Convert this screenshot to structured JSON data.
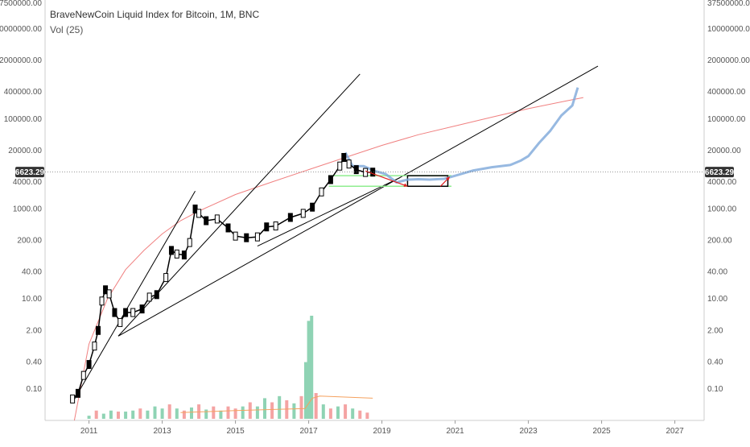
{
  "header": {
    "title": "BraveNewCoin Liquid Index for Bitcoin, 1M, BNC",
    "volume_label": "Vol (25)"
  },
  "current_price_label": "6623.29",
  "colors": {
    "candle": "#000000",
    "projection": "#7da7d9",
    "curve": "#f08080",
    "trendline": "#000000",
    "support": "#90ee90",
    "vol_up": "#8fd3b4",
    "vol_down": "#f4a3a3",
    "vol_ma": "#f5a15e",
    "arrow": "#e02020",
    "price_box": "#333333"
  },
  "chart_data": {
    "type": "line",
    "title": "BraveNewCoin Liquid Index for Bitcoin, 1M, BNC",
    "y_scale": "log",
    "ylim": [
      0.02,
      37500000
    ],
    "xlim": [
      2009.8,
      2027.8
    ],
    "y_ticks": [
      {
        "label": "0.10",
        "value": 0.1
      },
      {
        "label": "0.40",
        "value": 0.4
      },
      {
        "label": "2.00",
        "value": 2
      },
      {
        "label": "10.00",
        "value": 10
      },
      {
        "label": "40.00",
        "value": 40
      },
      {
        "label": "200.00",
        "value": 200
      },
      {
        "label": "1000.00",
        "value": 1000
      },
      {
        "label": "4000.00",
        "value": 4000
      },
      {
        "label": "20000.00",
        "value": 20000
      },
      {
        "label": "100000.00",
        "value": 100000
      },
      {
        "label": "400000.00",
        "value": 400000
      },
      {
        "label": "2000000.00",
        "value": 2000000
      },
      {
        "label": "10000000.00",
        "value": 10000000
      },
      {
        "label": "37500000.00",
        "value": 37500000
      }
    ],
    "x_ticks": [
      {
        "label": "2011",
        "value": 2011
      },
      {
        "label": "2013",
        "value": 2013
      },
      {
        "label": "2015",
        "value": 2015
      },
      {
        "label": "2017",
        "value": 2017
      },
      {
        "label": "2019",
        "value": 2019
      },
      {
        "label": "2021",
        "value": 2021
      },
      {
        "label": "2023",
        "value": 2023
      },
      {
        "label": "2025",
        "value": 2025
      },
      {
        "label": "2027",
        "value": 2027
      }
    ],
    "current_price": 6623.29,
    "price_series": {
      "name": "",
      "points": [
        [
          2010.55,
          0.06
        ],
        [
          2010.7,
          0.08
        ],
        [
          2010.85,
          0.2
        ],
        [
          2011.0,
          0.35
        ],
        [
          2011.15,
          0.9
        ],
        [
          2011.25,
          2.0
        ],
        [
          2011.35,
          9.0
        ],
        [
          2011.45,
          16.0
        ],
        [
          2011.55,
          13.0
        ],
        [
          2011.7,
          5.0
        ],
        [
          2011.85,
          3.0
        ],
        [
          2012.0,
          5.0
        ],
        [
          2012.2,
          5.0
        ],
        [
          2012.45,
          6.0
        ],
        [
          2012.65,
          11.0
        ],
        [
          2012.85,
          12.5
        ],
        [
          2013.1,
          30.0
        ],
        [
          2013.25,
          120.0
        ],
        [
          2013.4,
          100.0
        ],
        [
          2013.6,
          95.0
        ],
        [
          2013.75,
          180.0
        ],
        [
          2013.9,
          1000.0
        ],
        [
          2014.0,
          800.0
        ],
        [
          2014.2,
          550.0
        ],
        [
          2014.5,
          600.0
        ],
        [
          2014.8,
          380.0
        ],
        [
          2015.0,
          250.0
        ],
        [
          2015.3,
          230.0
        ],
        [
          2015.6,
          240.0
        ],
        [
          2015.85,
          400.0
        ],
        [
          2016.1,
          420.0
        ],
        [
          2016.5,
          650.0
        ],
        [
          2016.85,
          800.0
        ],
        [
          2017.1,
          1100.0
        ],
        [
          2017.35,
          2400.0
        ],
        [
          2017.6,
          4500.0
        ],
        [
          2017.85,
          9000.0
        ],
        [
          2017.96,
          14000.0
        ],
        [
          2018.1,
          10000.0
        ],
        [
          2018.3,
          7500.0
        ],
        [
          2018.55,
          6500.0
        ],
        [
          2018.75,
          6600.0
        ]
      ]
    },
    "projection_series": {
      "name": "",
      "points": [
        [
          2018.0,
          18000
        ],
        [
          2018.2,
          9000
        ],
        [
          2018.5,
          9000
        ],
        [
          2018.8,
          7000
        ],
        [
          2019.1,
          6000
        ],
        [
          2019.4,
          3900
        ],
        [
          2019.7,
          4500
        ],
        [
          2020.0,
          4600
        ],
        [
          2020.3,
          4500
        ],
        [
          2020.7,
          4700
        ],
        [
          2021.0,
          5500
        ],
        [
          2021.5,
          7200
        ],
        [
          2022.0,
          8500
        ],
        [
          2022.5,
          9500
        ],
        [
          2022.8,
          12000
        ],
        [
          2023.0,
          15000
        ],
        [
          2023.3,
          30000
        ],
        [
          2023.6,
          55000
        ],
        [
          2023.9,
          120000
        ],
        [
          2024.2,
          200000
        ],
        [
          2024.35,
          500000
        ]
      ]
    },
    "curve": {
      "name": "",
      "points": [
        [
          2010.6,
          0.02
        ],
        [
          2011.0,
          1.0
        ],
        [
          2011.5,
          10.0
        ],
        [
          2012.0,
          45.0
        ],
        [
          2012.5,
          120.0
        ],
        [
          2013.0,
          280.0
        ],
        [
          2013.5,
          550.0
        ],
        [
          2014.0,
          900.0
        ],
        [
          2015.0,
          2100.0
        ],
        [
          2016.0,
          4000.0
        ],
        [
          2017.0,
          7500.0
        ],
        [
          2018.0,
          14000.0
        ],
        [
          2019.0,
          26000.0
        ],
        [
          2020.0,
          45000.0
        ],
        [
          2021.0,
          70000.0
        ],
        [
          2022.0,
          110000.0
        ],
        [
          2023.0,
          170000.0
        ],
        [
          2024.0,
          250000.0
        ],
        [
          2024.5,
          300000.0
        ]
      ]
    },
    "trendlines": [
      {
        "from": [
          2010.55,
          0.05
        ],
        "to": [
          2013.9,
          2500.0
        ]
      },
      {
        "from": [
          2011.8,
          1.5
        ],
        "to": [
          2018.4,
          1000000.0
        ]
      },
      {
        "from": [
          2011.8,
          1.5
        ],
        "to": [
          2024.9,
          1500000.0
        ]
      },
      {
        "from": [
          2015.6,
          150.0
        ],
        "to": [
          2019.5,
          5000.0
        ]
      }
    ],
    "support_lines": [
      {
        "x": [
          2017.55,
          2020.9
        ],
        "y": 3200
      },
      {
        "x": [
          2017.55,
          2020.9
        ],
        "y": 5500
      }
    ],
    "range_box": {
      "x": [
        2019.7,
        2020.8
      ],
      "y": [
        3200,
        5500
      ]
    },
    "arrows": [
      {
        "from": [
          2018.55,
          7000
        ],
        "to": [
          2019.7,
          3200
        ]
      },
      {
        "from": [
          2020.6,
          3200
        ],
        "to": [
          2020.85,
          5200
        ]
      }
    ],
    "volume": {
      "x": [
        2011.0,
        2011.2,
        2011.4,
        2011.6,
        2011.8,
        2012.0,
        2012.2,
        2012.4,
        2012.6,
        2012.8,
        2013.0,
        2013.2,
        2013.4,
        2013.6,
        2013.8,
        2014.0,
        2014.2,
        2014.4,
        2014.6,
        2014.8,
        2015.0,
        2015.2,
        2015.4,
        2015.6,
        2015.8,
        2016.0,
        2016.2,
        2016.4,
        2016.6,
        2016.8,
        2016.92,
        2017.0,
        2017.08,
        2017.2,
        2017.4,
        2017.6,
        2017.8,
        2018.0,
        2018.2,
        2018.4,
        2018.6
      ],
      "values": [
        0.03,
        0.08,
        0.05,
        0.08,
        0.07,
        0.07,
        0.08,
        0.1,
        0.08,
        0.12,
        0.1,
        0.14,
        0.1,
        0.08,
        0.11,
        0.14,
        0.09,
        0.12,
        0.08,
        0.12,
        0.1,
        0.12,
        0.16,
        0.12,
        0.2,
        0.16,
        0.22,
        0.18,
        0.15,
        0.22,
        0.55,
        0.95,
        1.0,
        0.25,
        0.14,
        0.1,
        0.12,
        0.14,
        0.1,
        0.08,
        0.06
      ],
      "up": [
        true,
        false,
        true,
        true,
        false,
        true,
        true,
        false,
        true,
        true,
        true,
        false,
        true,
        false,
        true,
        false,
        true,
        false,
        true,
        false,
        false,
        true,
        false,
        true,
        true,
        false,
        true,
        false,
        true,
        false,
        true,
        true,
        true,
        false,
        true,
        false,
        true,
        false,
        true,
        false,
        false
      ],
      "ma": [
        [
          2013.5,
          0.06
        ],
        [
          2015.0,
          0.08
        ],
        [
          2016.9,
          0.1
        ],
        [
          2017.1,
          0.2
        ],
        [
          2017.3,
          0.22
        ],
        [
          2018.75,
          0.2
        ]
      ]
    }
  }
}
